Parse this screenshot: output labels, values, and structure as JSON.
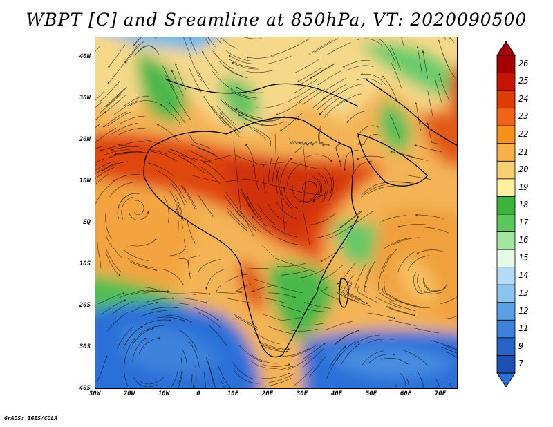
{
  "title": "WBPT [C] and Sreamline at 850hPa, VT: 2020090500",
  "credit": "GrADS: IGES/COLA",
  "map": {
    "lat_labels": [
      "40N",
      "30N",
      "20N",
      "10N",
      "EQ",
      "10S",
      "20S",
      "30S",
      "40S"
    ],
    "lon_labels": [
      "30W",
      "20W",
      "10W",
      "0",
      "10E",
      "20E",
      "30E",
      "40E",
      "50E",
      "60E",
      "70E"
    ],
    "lat_range": [
      -40,
      45
    ],
    "lon_range": [
      -30,
      75
    ]
  },
  "colorbar": {
    "labels": [
      "26",
      "25",
      "24",
      "23",
      "22",
      "21",
      "20",
      "19",
      "18",
      "17",
      "16",
      "15",
      "14",
      "13",
      "12",
      "11",
      "9",
      "7"
    ],
    "colors": [
      "#a50000",
      "#c81400",
      "#e03c00",
      "#f06418",
      "#f8901c",
      "#f8b048",
      "#f8d070",
      "#fff0a0",
      "#3cb43c",
      "#5ac85a",
      "#a0e6a0",
      "#e6fae6",
      "#b4dcf8",
      "#8cc4f0",
      "#5aa0e6",
      "#3c82dc",
      "#2864c8",
      "#1e50b4"
    ],
    "top_color": "#a50000",
    "bottom_color": "#2a6fd8"
  }
}
